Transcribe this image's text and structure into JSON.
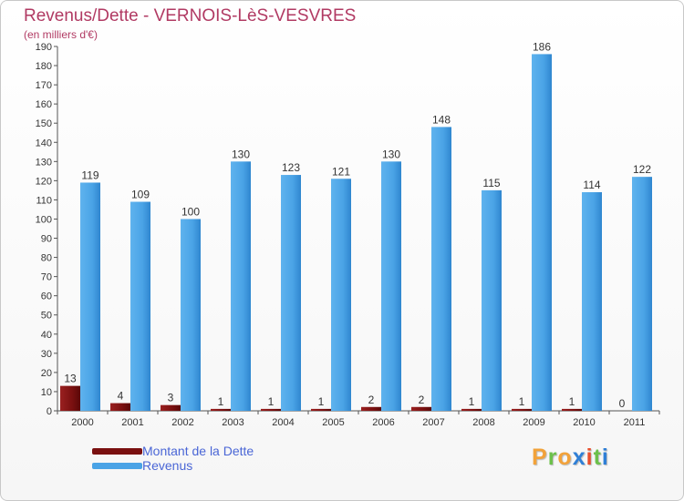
{
  "header": {
    "title": "Revenus/Dette - VERNOIS-LèS-VESVRES",
    "subtitle": "(en milliers d'€)"
  },
  "legend": {
    "items": [
      {
        "label": "Montant de la Dette",
        "color": "#7a1010"
      },
      {
        "label": "Revenus",
        "color": "#4aa3e6"
      }
    ]
  },
  "brand": {
    "text": "Proxiti",
    "colors": [
      "#f2a23a",
      "#6cc04a",
      "#f2a23a",
      "#2f7fd6",
      "#e94e2b",
      "#6cc04a",
      "#2f7fd6"
    ]
  },
  "chart_data": {
    "type": "bar",
    "title": "Revenus/Dette - VERNOIS-LèS-VESVRES",
    "subtitle": "(en milliers d'€)",
    "categories": [
      "2000",
      "2001",
      "2002",
      "2003",
      "2004",
      "2005",
      "2006",
      "2007",
      "2008",
      "2009",
      "2010",
      "2011"
    ],
    "series": [
      {
        "name": "Montant de la Dette",
        "color": "#7a1010",
        "values": [
          13,
          4,
          3,
          1,
          1,
          1,
          2,
          2,
          1,
          1,
          1,
          0
        ]
      },
      {
        "name": "Revenus",
        "color": "#4aa3e6",
        "values": [
          119,
          109,
          100,
          130,
          123,
          121,
          130,
          148,
          115,
          186,
          114,
          122
        ]
      }
    ],
    "ylim": [
      0,
      190
    ],
    "yticks": [
      0,
      10,
      20,
      30,
      40,
      50,
      60,
      70,
      80,
      90,
      100,
      110,
      120,
      130,
      140,
      150,
      160,
      170,
      180,
      190
    ],
    "grid": false,
    "legend_position": "bottom-left"
  }
}
